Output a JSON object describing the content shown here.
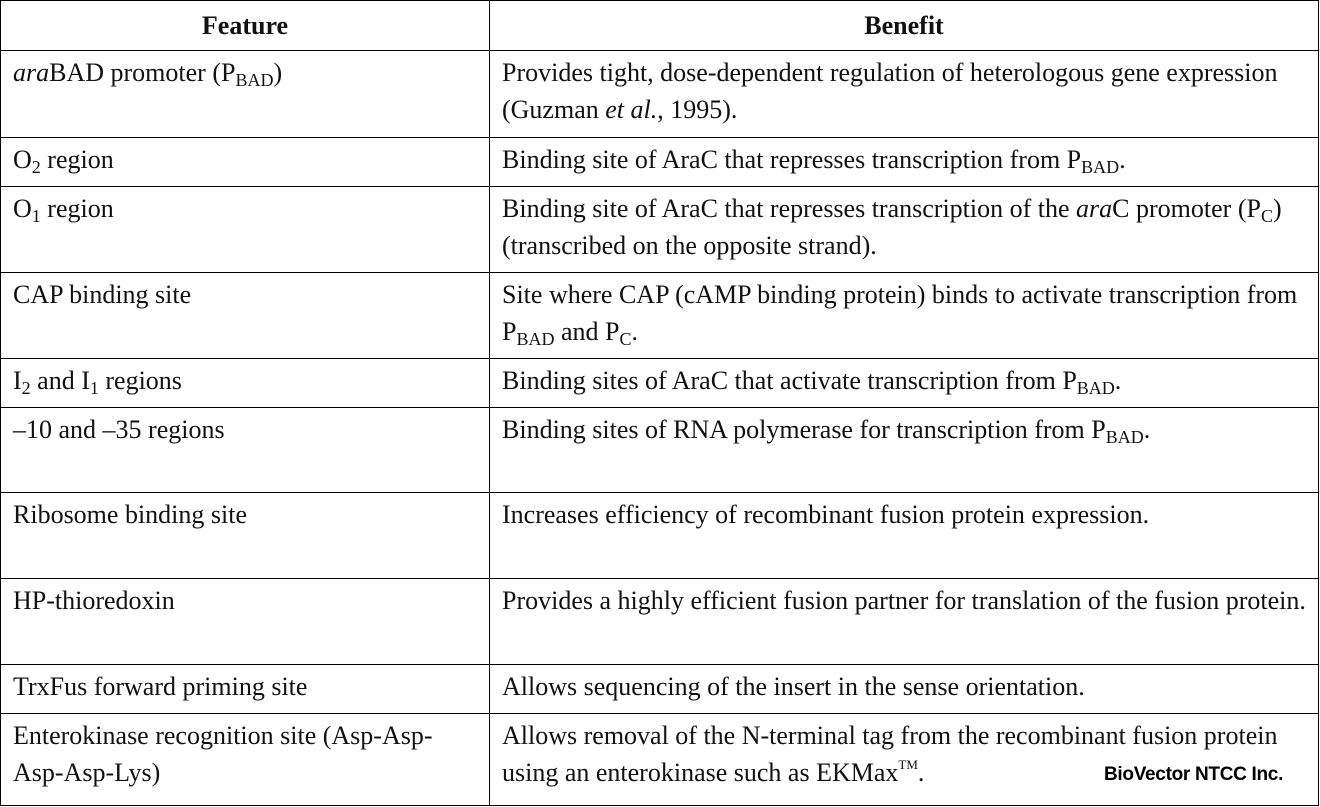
{
  "table": {
    "header": [
      "Feature",
      "Benefit"
    ],
    "rows": [
      {
        "feature": [
          "ara",
          "BAD promoter (P",
          "BAD",
          ")"
        ],
        "benefit": [
          "Provides tight, dose-dependent regulation of heterologous gene expression (Guzman ",
          "et al.",
          ", 1995)."
        ]
      },
      {
        "feature": [
          "O",
          "2",
          " region"
        ],
        "benefit": [
          "Binding site of AraC that represses transcription from P",
          "BAD",
          "."
        ]
      },
      {
        "feature": [
          "O",
          "1",
          " region"
        ],
        "benefit": [
          "Binding site of AraC that represses transcription of the ",
          "ara",
          "C promoter (P",
          "C",
          ") (transcribed on the opposite strand)."
        ]
      },
      {
        "feature": [
          "CAP binding site"
        ],
        "benefit": [
          "Site where CAP (cAMP binding protein) binds to activate transcription from P",
          "BAD",
          " and P",
          "C",
          "."
        ]
      },
      {
        "feature": [
          "I",
          "2",
          " and I",
          "1",
          " regions"
        ],
        "benefit": [
          "Binding sites of AraC that activate transcription from P",
          "BAD",
          "."
        ]
      },
      {
        "feature": [
          "–10 and –35 regions"
        ],
        "benefit": [
          "Binding sites of RNA polymerase for transcription from P",
          "BAD",
          "."
        ]
      },
      {
        "feature": [
          "Ribosome binding site"
        ],
        "benefit": [
          "Increases efficiency of recombinant fusion protein expression."
        ]
      },
      {
        "feature": [
          "HP-thioredoxin"
        ],
        "benefit": [
          "Provides a highly efficient fusion partner for translation of the fusion protein."
        ]
      },
      {
        "feature": [
          "TrxFus forward priming site"
        ],
        "benefit": [
          "Allows sequencing of the insert in the sense orientation."
        ]
      },
      {
        "feature": [
          "Enterokinase recognition site (Asp-Asp-Asp-Asp-Lys)"
        ],
        "benefit": [
          "Allows removal of the N-terminal tag from the recombinant fusion protein using an enterokinase such as EKMax",
          "TM",
          "."
        ]
      }
    ]
  },
  "watermark": "BioVector NTCC Inc."
}
